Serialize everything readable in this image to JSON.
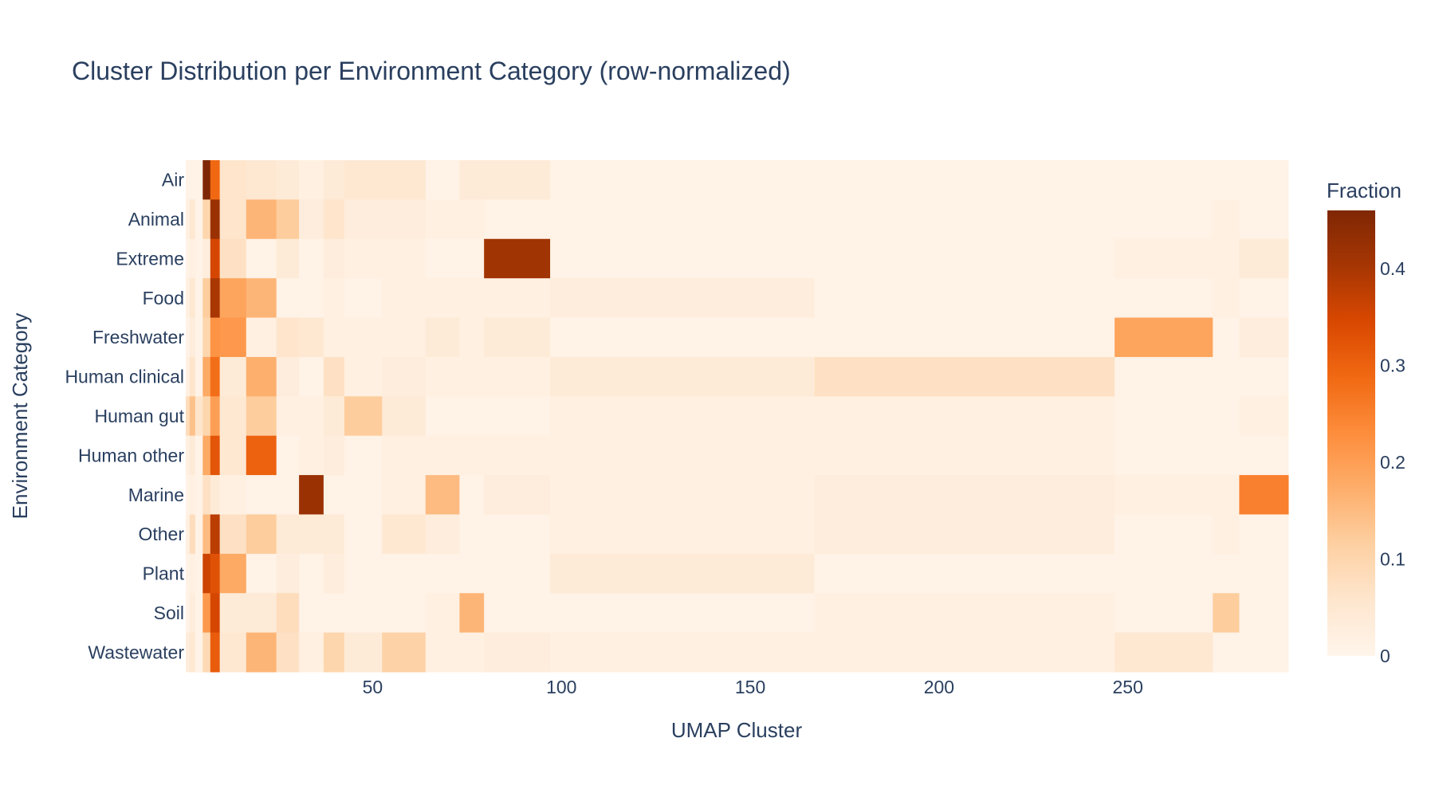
{
  "chart_data": {
    "type": "heatmap",
    "title": "Cluster Distribution per Environment Category (row-normalized)",
    "xlabel": "UMAP Cluster",
    "ylabel": "Environment Category",
    "colorbar_title": "Fraction",
    "colorscale": "Oranges",
    "colorscale_stops": [
      "#fff5eb",
      "#fee6ce",
      "#fdd0a2",
      "#fdae6b",
      "#fd8d3c",
      "#f16913",
      "#d94801",
      "#a63603",
      "#7f2704"
    ],
    "zlim": [
      0,
      0.46
    ],
    "colorbar_ticks": [
      0,
      0.1,
      0.2,
      0.3,
      0.4
    ],
    "colorbar_tick_labels": [
      "0",
      "0.1",
      "0.2",
      "0.3",
      "0.4"
    ],
    "x_ticks": [
      50,
      100,
      150,
      200,
      250
    ],
    "x_tick_labels": [
      "50",
      "100",
      "150",
      "200",
      "250"
    ],
    "x": [
      1,
      2,
      4,
      6,
      8,
      11,
      22,
      27,
      34,
      40,
      45,
      60,
      68,
      78,
      81,
      113,
      221,
      272,
      273,
      286
    ],
    "y": [
      "Air",
      "Animal",
      "Extreme",
      "Food",
      "Freshwater",
      "Human clinical",
      "Human gut",
      "Human other",
      "Marine",
      "Other",
      "Plant",
      "Soil",
      "Wastewater"
    ],
    "z": [
      [
        0.01,
        0.01,
        0.01,
        0.46,
        0.29,
        0.06,
        0.05,
        0.04,
        0.02,
        0.04,
        0.05,
        0.05,
        0.01,
        0.04,
        0.04,
        0.01,
        0.01,
        0.01,
        0.01,
        0.01
      ],
      [
        0.02,
        0.05,
        0.01,
        0.1,
        0.42,
        0.06,
        0.16,
        0.12,
        0.03,
        0.06,
        0.03,
        0.03,
        0.02,
        0.02,
        0.01,
        0.01,
        0.01,
        0.01,
        0.02,
        0.01
      ],
      [
        0.01,
        0.02,
        0.01,
        0.03,
        0.35,
        0.07,
        0.01,
        0.04,
        0.01,
        0.03,
        0.02,
        0.02,
        0.01,
        0.01,
        0.41,
        0.01,
        0.01,
        0.02,
        0.02,
        0.04
      ],
      [
        0.02,
        0.05,
        0.01,
        0.12,
        0.4,
        0.19,
        0.16,
        0.01,
        0.01,
        0.02,
        0.01,
        0.02,
        0.02,
        0.02,
        0.02,
        0.03,
        0.01,
        0.01,
        0.02,
        0.01
      ],
      [
        0.01,
        0.03,
        0.01,
        0.1,
        0.22,
        0.21,
        0.02,
        0.06,
        0.05,
        0.02,
        0.02,
        0.02,
        0.04,
        0.02,
        0.04,
        0.01,
        0.01,
        0.19,
        0.01,
        0.03
      ],
      [
        0.02,
        0.06,
        0.01,
        0.18,
        0.28,
        0.04,
        0.17,
        0.03,
        0.01,
        0.07,
        0.02,
        0.03,
        0.02,
        0.02,
        0.02,
        0.04,
        0.07,
        0.01,
        0.01,
        0.01
      ],
      [
        0.08,
        0.14,
        0.06,
        0.1,
        0.2,
        0.05,
        0.12,
        0.02,
        0.02,
        0.04,
        0.12,
        0.04,
        0.01,
        0.01,
        0.01,
        0.02,
        0.02,
        0.01,
        0.01,
        0.02
      ],
      [
        0.02,
        0.04,
        0.01,
        0.18,
        0.32,
        0.05,
        0.3,
        0.01,
        0.02,
        0.03,
        0.01,
        0.02,
        0.02,
        0.02,
        0.02,
        0.02,
        0.02,
        0.01,
        0.01,
        0.01
      ],
      [
        0.01,
        0.02,
        0.01,
        0.07,
        0.04,
        0.02,
        0.01,
        0.01,
        0.42,
        0.01,
        0.01,
        0.02,
        0.15,
        0.01,
        0.03,
        0.02,
        0.03,
        0.02,
        0.02,
        0.25
      ],
      [
        0.02,
        0.08,
        0.01,
        0.15,
        0.38,
        0.07,
        0.12,
        0.04,
        0.04,
        0.04,
        0.01,
        0.05,
        0.03,
        0.01,
        0.01,
        0.02,
        0.03,
        0.01,
        0.02,
        0.01
      ],
      [
        0.01,
        0.02,
        0.01,
        0.36,
        0.33,
        0.18,
        0.01,
        0.03,
        0.01,
        0.03,
        0.01,
        0.01,
        0.01,
        0.01,
        0.01,
        0.04,
        0.01,
        0.01,
        0.01,
        0.01
      ],
      [
        0.01,
        0.03,
        0.01,
        0.21,
        0.35,
        0.04,
        0.04,
        0.08,
        0.01,
        0.01,
        0.01,
        0.01,
        0.02,
        0.16,
        0.01,
        0.01,
        0.02,
        0.01,
        0.12,
        0.01
      ],
      [
        0.03,
        0.05,
        0.01,
        0.09,
        0.31,
        0.05,
        0.16,
        0.07,
        0.02,
        0.1,
        0.04,
        0.11,
        0.02,
        0.02,
        0.03,
        0.02,
        0.02,
        0.05,
        0.01,
        0.01
      ]
    ],
    "grid": false,
    "legend": "colorbar-right"
  }
}
